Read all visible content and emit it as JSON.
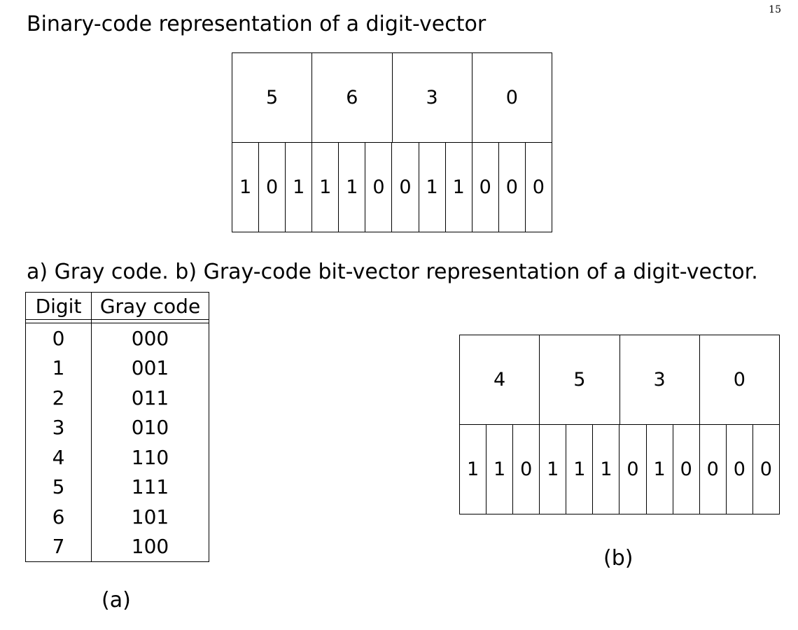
{
  "page_number": "15",
  "heading1": "Binary-code representation of a digit-vector",
  "heading2": "a) Gray code. b) Gray-code bit-vector representation of a digit-vector.",
  "binary_diagram": {
    "digits": [
      "5",
      "6",
      "3",
      "0"
    ],
    "bits": [
      "1",
      "0",
      "1",
      "1",
      "1",
      "0",
      "0",
      "1",
      "1",
      "0",
      "0",
      "0"
    ]
  },
  "gray_table": {
    "headers": [
      "Digit",
      "Gray code"
    ],
    "rows": [
      [
        "0",
        "000"
      ],
      [
        "1",
        "001"
      ],
      [
        "2",
        "011"
      ],
      [
        "3",
        "010"
      ],
      [
        "4",
        "110"
      ],
      [
        "5",
        "111"
      ],
      [
        "6",
        "101"
      ],
      [
        "7",
        "100"
      ]
    ]
  },
  "gray_diagram": {
    "digits": [
      "4",
      "5",
      "3",
      "0"
    ],
    "bits": [
      "1",
      "1",
      "0",
      "1",
      "1",
      "1",
      "0",
      "1",
      "0",
      "0",
      "0",
      "0"
    ]
  },
  "caption_a": "(a)",
  "caption_b": "(b)"
}
